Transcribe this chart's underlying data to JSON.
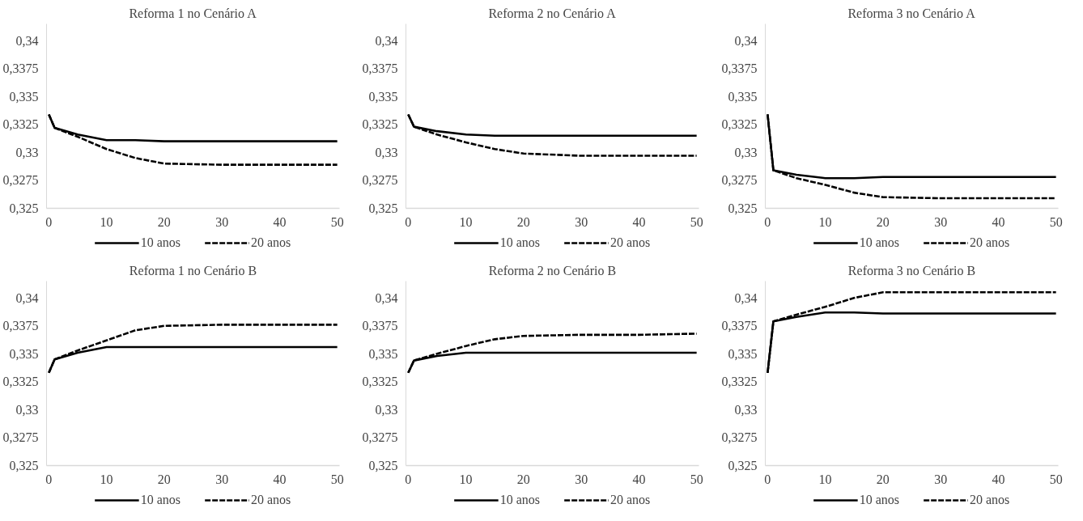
{
  "chart_data": [
    {
      "type": "line",
      "title": "Reforma 1 no Cenário A",
      "x": [
        0,
        1,
        5,
        10,
        15,
        20,
        30,
        40,
        50
      ],
      "xlim": [
        -0.4,
        50.4
      ],
      "xticks": [
        0,
        10,
        20,
        30,
        40,
        50
      ],
      "ylim": [
        0.325,
        0.3415
      ],
      "yticks": [
        {
          "value": 0.325,
          "label": "0,325"
        },
        {
          "value": 0.3275,
          "label": "0,3275"
        },
        {
          "value": 0.33,
          "label": "0,33"
        },
        {
          "value": 0.3325,
          "label": "0,3325"
        },
        {
          "value": 0.335,
          "label": "0,335"
        },
        {
          "value": 0.3375,
          "label": "0,3375"
        },
        {
          "value": 0.34,
          "label": "0,34"
        }
      ],
      "grid": false,
      "legend": "bottom",
      "series": [
        {
          "name": "10 anos",
          "color": "#000000",
          "line_style": "solid",
          "values": [
            0.3334,
            0.3322,
            0.3316,
            0.3311,
            0.3311,
            0.331,
            0.331,
            0.331,
            0.331
          ]
        },
        {
          "name": "20 anos",
          "color": "#000000",
          "line_style": "dashed",
          "values": [
            0.3334,
            0.3322,
            0.3314,
            0.3303,
            0.3295,
            0.329,
            0.3289,
            0.3289,
            0.3289
          ]
        }
      ]
    },
    {
      "type": "line",
      "title": "Reforma 2 no Cenário A",
      "x": [
        0,
        1,
        5,
        10,
        15,
        20,
        30,
        40,
        50
      ],
      "xlim": [
        -0.4,
        50.4
      ],
      "xticks": [
        0,
        10,
        20,
        30,
        40,
        50
      ],
      "ylim": [
        0.325,
        0.3415
      ],
      "yticks": [
        {
          "value": 0.325,
          "label": "0,325"
        },
        {
          "value": 0.3275,
          "label": "0,3275"
        },
        {
          "value": 0.33,
          "label": "0,33"
        },
        {
          "value": 0.3325,
          "label": "0,3325"
        },
        {
          "value": 0.335,
          "label": "0,335"
        },
        {
          "value": 0.3375,
          "label": "0,3375"
        },
        {
          "value": 0.34,
          "label": "0,34"
        }
      ],
      "grid": false,
      "legend": "bottom",
      "series": [
        {
          "name": "10 anos",
          "color": "#000000",
          "line_style": "solid",
          "values": [
            0.3334,
            0.3323,
            0.3319,
            0.3316,
            0.3315,
            0.3315,
            0.3315,
            0.3315,
            0.3315
          ]
        },
        {
          "name": "20 anos",
          "color": "#000000",
          "line_style": "dashed",
          "values": [
            0.3334,
            0.3323,
            0.3316,
            0.3309,
            0.3303,
            0.3299,
            0.3297,
            0.3297,
            0.3297
          ]
        }
      ]
    },
    {
      "type": "line",
      "title": "Reforma 3 no Cenário A",
      "x": [
        0,
        1,
        5,
        10,
        15,
        20,
        30,
        40,
        50
      ],
      "xlim": [
        -0.4,
        50.4
      ],
      "xticks": [
        0,
        10,
        20,
        30,
        40,
        50
      ],
      "ylim": [
        0.325,
        0.3415
      ],
      "yticks": [
        {
          "value": 0.325,
          "label": "0,325"
        },
        {
          "value": 0.3275,
          "label": "0,3275"
        },
        {
          "value": 0.33,
          "label": "0,33"
        },
        {
          "value": 0.3325,
          "label": "0,3325"
        },
        {
          "value": 0.335,
          "label": "0,335"
        },
        {
          "value": 0.3375,
          "label": "0,3375"
        },
        {
          "value": 0.34,
          "label": "0,34"
        }
      ],
      "grid": false,
      "legend": "bottom",
      "series": [
        {
          "name": "10 anos",
          "color": "#000000",
          "line_style": "solid",
          "values": [
            0.3334,
            0.3284,
            0.328,
            0.3277,
            0.3277,
            0.3278,
            0.3278,
            0.3278,
            0.3278
          ]
        },
        {
          "name": "20 anos",
          "color": "#000000",
          "line_style": "dashed",
          "values": [
            0.3334,
            0.3284,
            0.3277,
            0.3271,
            0.3264,
            0.326,
            0.3259,
            0.3259,
            0.3259
          ]
        }
      ]
    },
    {
      "type": "line",
      "title": "Reforma 1 no Cenário B",
      "x": [
        0,
        1,
        5,
        10,
        15,
        20,
        30,
        40,
        50
      ],
      "xlim": [
        -0.4,
        50.4
      ],
      "xticks": [
        0,
        10,
        20,
        30,
        40,
        50
      ],
      "ylim": [
        0.325,
        0.3415
      ],
      "yticks": [
        {
          "value": 0.325,
          "label": "0,325"
        },
        {
          "value": 0.3275,
          "label": "0,3275"
        },
        {
          "value": 0.33,
          "label": "0,33"
        },
        {
          "value": 0.3325,
          "label": "0,3325"
        },
        {
          "value": 0.335,
          "label": "0,335"
        },
        {
          "value": 0.3375,
          "label": "0,3375"
        },
        {
          "value": 0.34,
          "label": "0,34"
        }
      ],
      "grid": false,
      "legend": "bottom",
      "series": [
        {
          "name": "10 anos",
          "color": "#000000",
          "line_style": "solid",
          "values": [
            0.3333,
            0.3345,
            0.3351,
            0.3356,
            0.3356,
            0.3356,
            0.3356,
            0.3356,
            0.3356
          ]
        },
        {
          "name": "20 anos",
          "color": "#000000",
          "line_style": "dashed",
          "values": [
            0.3333,
            0.3345,
            0.3353,
            0.3362,
            0.3371,
            0.3375,
            0.3376,
            0.3376,
            0.3376
          ]
        }
      ]
    },
    {
      "type": "line",
      "title": "Reforma 2 no Cenário B",
      "x": [
        0,
        1,
        5,
        10,
        15,
        20,
        30,
        40,
        50
      ],
      "xlim": [
        -0.4,
        50.4
      ],
      "xticks": [
        0,
        10,
        20,
        30,
        40,
        50
      ],
      "ylim": [
        0.325,
        0.3415
      ],
      "yticks": [
        {
          "value": 0.325,
          "label": "0,325"
        },
        {
          "value": 0.3275,
          "label": "0,3275"
        },
        {
          "value": 0.33,
          "label": "0,33"
        },
        {
          "value": 0.3325,
          "label": "0,3325"
        },
        {
          "value": 0.335,
          "label": "0,335"
        },
        {
          "value": 0.3375,
          "label": "0,3375"
        },
        {
          "value": 0.34,
          "label": "0,34"
        }
      ],
      "grid": false,
      "legend": "bottom",
      "series": [
        {
          "name": "10 anos",
          "color": "#000000",
          "line_style": "solid",
          "values": [
            0.3333,
            0.3344,
            0.3348,
            0.3351,
            0.3351,
            0.3351,
            0.3351,
            0.3351,
            0.3351
          ]
        },
        {
          "name": "20 anos",
          "color": "#000000",
          "line_style": "dashed",
          "values": [
            0.3333,
            0.3344,
            0.335,
            0.3357,
            0.3363,
            0.3366,
            0.3367,
            0.3367,
            0.3368
          ]
        }
      ]
    },
    {
      "type": "line",
      "title": "Reforma 3 no Cenário B",
      "x": [
        0,
        1,
        5,
        10,
        15,
        20,
        30,
        40,
        50
      ],
      "xlim": [
        -0.4,
        50.4
      ],
      "xticks": [
        0,
        10,
        20,
        30,
        40,
        50
      ],
      "ylim": [
        0.325,
        0.3415
      ],
      "yticks": [
        {
          "value": 0.325,
          "label": "0,325"
        },
        {
          "value": 0.3275,
          "label": "0,3275"
        },
        {
          "value": 0.33,
          "label": "0,33"
        },
        {
          "value": 0.3325,
          "label": "0,3325"
        },
        {
          "value": 0.335,
          "label": "0,335"
        },
        {
          "value": 0.3375,
          "label": "0,3375"
        },
        {
          "value": 0.34,
          "label": "0,34"
        }
      ],
      "grid": false,
      "legend": "bottom",
      "series": [
        {
          "name": "10 anos",
          "color": "#000000",
          "line_style": "solid",
          "values": [
            0.3333,
            0.3379,
            0.3383,
            0.3387,
            0.3387,
            0.3386,
            0.3386,
            0.3386,
            0.3386
          ]
        },
        {
          "name": "20 anos",
          "color": "#000000",
          "line_style": "dashed",
          "values": [
            0.3333,
            0.3379,
            0.3385,
            0.3392,
            0.34,
            0.3405,
            0.3405,
            0.3405,
            0.3405
          ]
        }
      ]
    }
  ]
}
